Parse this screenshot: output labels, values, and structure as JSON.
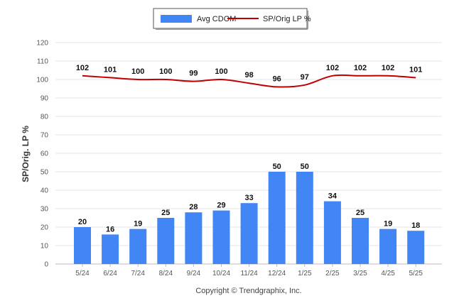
{
  "chart_data": {
    "type": "bar",
    "categories": [
      "5/24",
      "6/24",
      "7/24",
      "8/24",
      "9/24",
      "10/24",
      "11/24",
      "12/24",
      "1/25",
      "2/25",
      "3/25",
      "4/25",
      "5/25"
    ],
    "series": [
      {
        "name": "Avg CDOM",
        "type": "bar",
        "color": "#4285f4",
        "values": [
          20,
          16,
          19,
          25,
          28,
          29,
          33,
          50,
          50,
          34,
          25,
          19,
          18
        ]
      },
      {
        "name": "SP/Orig LP %",
        "type": "line",
        "color": "#c00000",
        "values": [
          102,
          101,
          100,
          100,
          99,
          100,
          98,
          96,
          97,
          102,
          102,
          102,
          101
        ]
      }
    ],
    "ylabel": "SP/Orig. LP %",
    "xlabel": "",
    "ylim": [
      0,
      120
    ],
    "yticks": [
      0,
      10,
      20,
      30,
      40,
      50,
      60,
      70,
      80,
      90,
      100,
      110,
      120
    ],
    "grid": true,
    "legend_position": "top-center"
  },
  "footer": {
    "copyright": "Copyright © Trendgraphix, Inc."
  }
}
